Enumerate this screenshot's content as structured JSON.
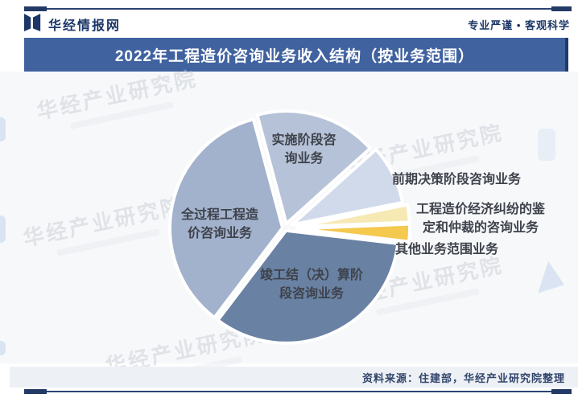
{
  "header": {
    "brand": "华经情报网",
    "tagline": "专业严谨 • 客观科学"
  },
  "banner": {
    "title": "2022年工程造价咨询业务收入结构（按业务范围）",
    "bg_color": "#40629f",
    "text_color": "#ffffff"
  },
  "chart_data": {
    "type": "pie",
    "title": "2022年工程造价咨询业务收入结构（按业务范围）",
    "unit": "%",
    "note": "no numeric labels shown in chart; slice values estimated from slice angles",
    "start_angle_clock_deg": -15,
    "gap_color": "#ffffff",
    "legend_position": "labels-on-and-beside-slices",
    "slices": [
      {
        "label": "实施阶段咨询业务",
        "label_wrapped": "实施阶段咨\n询业务",
        "value": 17.5,
        "color": "#b5c2d8"
      },
      {
        "label": "前期决策阶段咨询业务",
        "label_wrapped": "前期决策阶段咨询业务",
        "value": 8.5,
        "color": "#d0daea"
      },
      {
        "label": "工程造价经济纠纷的鉴定和仲裁的咨询业务",
        "label_wrapped": "工程造价经济纠纷的鉴\n定和仲裁的咨询业务",
        "value": 2.5,
        "color": "#f7e9b4"
      },
      {
        "label": "其他业务范围业务",
        "label_wrapped": "其他业务范围业务",
        "value": 2.5,
        "color": "#f5c84e"
      },
      {
        "label": "竣工结（决）算阶段咨询业务",
        "label_wrapped": "竣工结（决）算阶\n段咨询业务",
        "value": 33.5,
        "color": "#6981a3"
      },
      {
        "label": "全过程工程造价咨询业务",
        "label_wrapped": "全过程工程造\n价咨询业务",
        "value": 35.5,
        "color": "#a2b2cc"
      }
    ]
  },
  "watermark": {
    "text": "华经产业研究院"
  },
  "footer": {
    "source": "资料来源：住建部，华经产业研究院整理"
  },
  "colors": {
    "navy": "#1c3767",
    "rule": "#2b4370",
    "banner_bg": "#40629f",
    "label_text": "#3e424b",
    "source_band_bg": "#edf1f6"
  }
}
